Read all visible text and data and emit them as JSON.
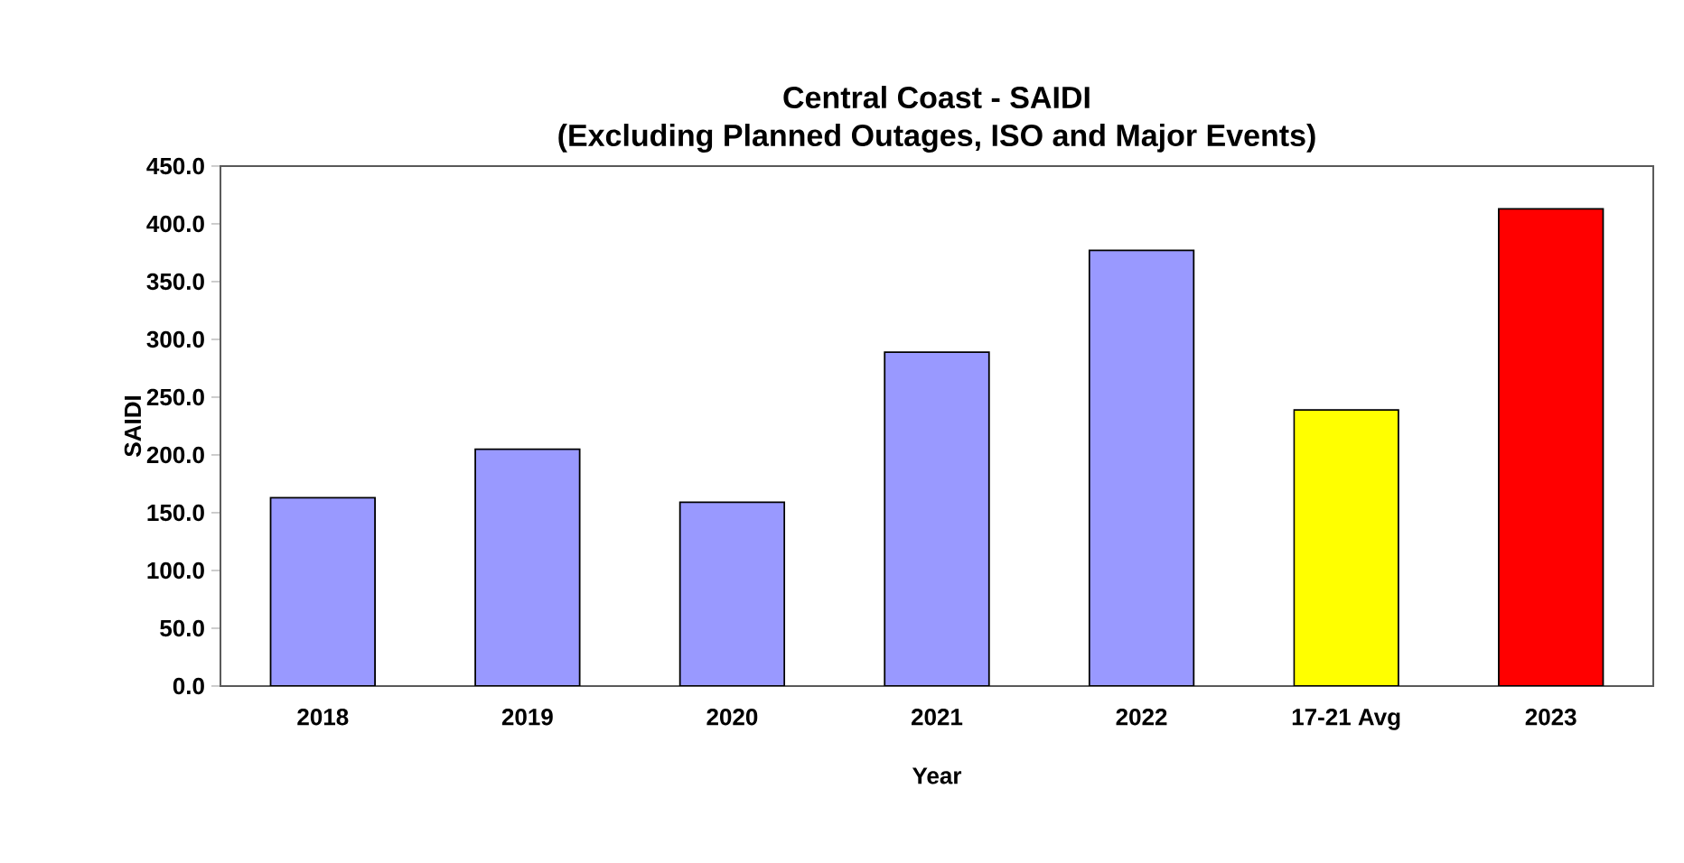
{
  "chart_data": {
    "type": "bar",
    "title": "Central Coast - SAIDI",
    "subtitle": "(Excluding Planned Outages, ISO and Major Events)",
    "xlabel": "Year",
    "ylabel": "SAIDI",
    "categories": [
      "2018",
      "2019",
      "2020",
      "2021",
      "2022",
      "17-21 Avg",
      "2023"
    ],
    "values": [
      163,
      205,
      159,
      289,
      377,
      239,
      413
    ],
    "colors": [
      "#9999ff",
      "#9999ff",
      "#9999ff",
      "#9999ff",
      "#9999ff",
      "#ffff00",
      "#ff0000"
    ],
    "ylim": [
      0,
      450
    ],
    "yticks": [
      {
        "value": 0,
        "label": "0.0"
      },
      {
        "value": 50,
        "label": "50.0"
      },
      {
        "value": 100,
        "label": "100.0"
      },
      {
        "value": 150,
        "label": "150.0"
      },
      {
        "value": 200,
        "label": "200.0"
      },
      {
        "value": 250,
        "label": "250.0"
      },
      {
        "value": 300,
        "label": "300.0"
      },
      {
        "value": 350,
        "label": "350.0"
      },
      {
        "value": 400,
        "label": "400.0"
      },
      {
        "value": 450,
        "label": "450.0"
      }
    ],
    "grid": false
  }
}
